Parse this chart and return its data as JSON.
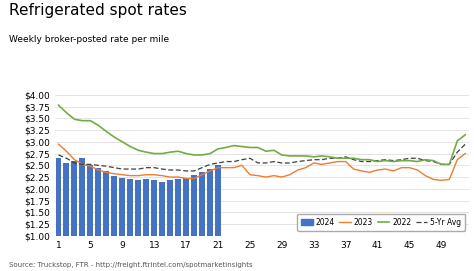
{
  "title": "Refrigerated spot rates",
  "subtitle": "Weekly broker-posted rate per mile",
  "source": "Source: Truckstop, FTR - http://freight.ftrintel.com/spotmarketinsights",
  "ylim": [
    1.0,
    4.0
  ],
  "yticks": [
    1.0,
    1.25,
    1.5,
    1.75,
    2.0,
    2.25,
    2.5,
    2.75,
    3.0,
    3.25,
    3.5,
    3.75,
    4.0
  ],
  "xticks": [
    1,
    5,
    9,
    13,
    17,
    21,
    25,
    29,
    33,
    37,
    41,
    45,
    49
  ],
  "xlim": [
    0.5,
    52.5
  ],
  "bar_color": "#4472C4",
  "line2023_color": "#ED7D31",
  "line2022_color": "#70AD47",
  "line5yr_color": "#404040",
  "weeks_2024": [
    1,
    2,
    3,
    4,
    5,
    6,
    7,
    8,
    9,
    10,
    11,
    12,
    13,
    14,
    15,
    16,
    17,
    18,
    19,
    20,
    21
  ],
  "values_2024": [
    2.65,
    2.55,
    2.6,
    2.65,
    2.5,
    2.45,
    2.38,
    2.28,
    2.22,
    2.2,
    2.18,
    2.2,
    2.18,
    2.15,
    2.18,
    2.2,
    2.22,
    2.3,
    2.35,
    2.42,
    2.5
  ],
  "weeks_2023": [
    1,
    2,
    3,
    4,
    5,
    6,
    7,
    8,
    9,
    10,
    11,
    12,
    13,
    14,
    15,
    16,
    17,
    18,
    19,
    20,
    21,
    22,
    23,
    24,
    25,
    26,
    27,
    28,
    29,
    30,
    31,
    32,
    33,
    34,
    35,
    36,
    37,
    38,
    39,
    40,
    41,
    42,
    43,
    44,
    45,
    46,
    47,
    48,
    49,
    50,
    51,
    52
  ],
  "values_2023": [
    2.95,
    2.8,
    2.62,
    2.52,
    2.48,
    2.4,
    2.35,
    2.32,
    2.3,
    2.28,
    2.28,
    2.3,
    2.3,
    2.28,
    2.25,
    2.25,
    2.22,
    2.22,
    2.3,
    2.38,
    2.45,
    2.45,
    2.45,
    2.5,
    2.3,
    2.28,
    2.25,
    2.28,
    2.25,
    2.3,
    2.4,
    2.45,
    2.55,
    2.52,
    2.55,
    2.58,
    2.58,
    2.42,
    2.38,
    2.35,
    2.4,
    2.42,
    2.38,
    2.45,
    2.45,
    2.4,
    2.28,
    2.2,
    2.18,
    2.2,
    2.62,
    2.75
  ],
  "weeks_2022": [
    1,
    2,
    3,
    4,
    5,
    6,
    7,
    8,
    9,
    10,
    11,
    12,
    13,
    14,
    15,
    16,
    17,
    18,
    19,
    20,
    21,
    22,
    23,
    24,
    25,
    26,
    27,
    28,
    29,
    30,
    31,
    32,
    33,
    34,
    35,
    36,
    37,
    38,
    39,
    40,
    41,
    42,
    43,
    44,
    45,
    46,
    47,
    48,
    49,
    50,
    51,
    52
  ],
  "values_2022": [
    3.78,
    3.62,
    3.48,
    3.45,
    3.45,
    3.35,
    3.22,
    3.1,
    3.0,
    2.9,
    2.82,
    2.78,
    2.75,
    2.75,
    2.78,
    2.8,
    2.75,
    2.72,
    2.72,
    2.75,
    2.85,
    2.88,
    2.92,
    2.9,
    2.88,
    2.88,
    2.8,
    2.82,
    2.72,
    2.7,
    2.7,
    2.7,
    2.68,
    2.7,
    2.68,
    2.65,
    2.65,
    2.65,
    2.62,
    2.62,
    2.58,
    2.6,
    2.58,
    2.6,
    2.6,
    2.58,
    2.62,
    2.6,
    2.52,
    2.52,
    3.02,
    3.15
  ],
  "weeks_5yr": [
    1,
    2,
    3,
    4,
    5,
    6,
    7,
    8,
    9,
    10,
    11,
    12,
    13,
    14,
    15,
    16,
    17,
    18,
    19,
    20,
    21,
    22,
    23,
    24,
    25,
    26,
    27,
    28,
    29,
    30,
    31,
    32,
    33,
    34,
    35,
    36,
    37,
    38,
    39,
    40,
    41,
    42,
    43,
    44,
    45,
    46,
    47,
    48,
    49,
    50,
    51,
    52
  ],
  "values_5yr": [
    2.72,
    2.65,
    2.55,
    2.52,
    2.52,
    2.5,
    2.48,
    2.45,
    2.42,
    2.42,
    2.42,
    2.45,
    2.45,
    2.42,
    2.4,
    2.4,
    2.38,
    2.38,
    2.45,
    2.52,
    2.55,
    2.58,
    2.58,
    2.62,
    2.65,
    2.55,
    2.55,
    2.58,
    2.55,
    2.55,
    2.58,
    2.6,
    2.62,
    2.62,
    2.65,
    2.65,
    2.68,
    2.62,
    2.58,
    2.58,
    2.6,
    2.62,
    2.6,
    2.62,
    2.65,
    2.65,
    2.6,
    2.58,
    2.52,
    2.52,
    2.78,
    2.95
  ],
  "bg_color": "#FFFFFF",
  "grid_color": "#D9D9D9"
}
